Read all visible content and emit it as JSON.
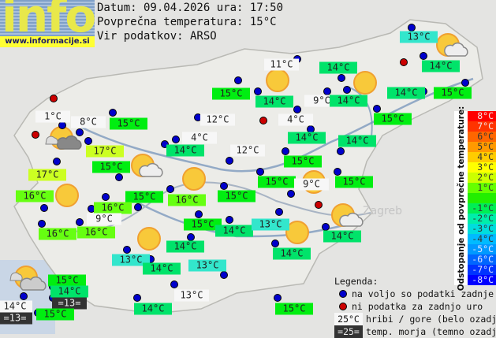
{
  "logo": {
    "text": "info",
    "url": "www.informacije.si"
  },
  "header": {
    "date_line": "Datum: 09.04.2026 ura: 17:50",
    "avg_line": "Povprečna temperatura: 15°C",
    "source_line": "Vir podatkov: ARSO"
  },
  "colors": {
    "available_dot": "#0000cc",
    "missing_dot": "#cc0000",
    "17": "#ccff22",
    "16": "#66ff11",
    "15": "#00ee11",
    "14": "#00e36a",
    "13": "#33e6cc"
  },
  "labels": [
    {
      "text": "13°C",
      "kind": "valley"
    },
    {
      "text": "11°C",
      "kind": "mountain"
    },
    {
      "text": "14°C",
      "kind": "valley"
    },
    {
      "text": "14°C",
      "kind": "valley"
    },
    {
      "text": "15°C",
      "kind": "valley"
    },
    {
      "text": "14°C",
      "kind": "valley"
    },
    {
      "text": "9°C",
      "kind": "mountain"
    },
    {
      "text": "14°C",
      "kind": "valley"
    },
    {
      "text": "14°C",
      "kind": "valley"
    },
    {
      "text": "15°C",
      "kind": "valley"
    },
    {
      "text": "15°C",
      "kind": "valley"
    },
    {
      "text": "1°C",
      "kind": "mountain"
    },
    {
      "text": "8°C",
      "kind": "mountain"
    },
    {
      "text": "15°C",
      "kind": "valley"
    },
    {
      "text": "12°C",
      "kind": "mountain"
    },
    {
      "text": "4°C",
      "kind": "mountain"
    },
    {
      "text": "4°C",
      "kind": "mountain"
    },
    {
      "text": "14°C",
      "kind": "valley"
    },
    {
      "text": "14°C",
      "kind": "valley"
    },
    {
      "text": "14°C",
      "kind": "valley"
    },
    {
      "text": "17°C",
      "kind": "valley"
    },
    {
      "text": "12°C",
      "kind": "mountain"
    },
    {
      "text": "15°C",
      "kind": "valley"
    },
    {
      "text": "15°C",
      "kind": "valley"
    },
    {
      "text": "15°C",
      "kind": "valley"
    },
    {
      "text": "9°C",
      "kind": "mountain"
    },
    {
      "text": "15°C",
      "kind": "valley"
    },
    {
      "text": "17°C",
      "kind": "valley"
    },
    {
      "text": "15°C",
      "kind": "valley"
    },
    {
      "text": "16°C",
      "kind": "valley"
    },
    {
      "text": "15°C",
      "kind": "valley"
    },
    {
      "text": "16°C",
      "kind": "valley"
    },
    {
      "text": "16°C",
      "kind": "valley"
    },
    {
      "text": "9°C",
      "kind": "mountain"
    },
    {
      "text": "16°C",
      "kind": "valley"
    },
    {
      "text": "16°C",
      "kind": "valley"
    },
    {
      "text": "15°C",
      "kind": "valley"
    },
    {
      "text": "14°C",
      "kind": "valley"
    },
    {
      "text": "13°C",
      "kind": "valley"
    },
    {
      "text": "14°C",
      "kind": "valley"
    },
    {
      "text": "14°C",
      "kind": "valley"
    },
    {
      "text": "13°C",
      "kind": "valley"
    },
    {
      "text": "14°C",
      "kind": "valley"
    },
    {
      "text": "13°C",
      "kind": "valley"
    },
    {
      "text": "14°C",
      "kind": "valley"
    },
    {
      "text": "15°C",
      "kind": "valley"
    },
    {
      "text": "14°C",
      "kind": "valley"
    },
    {
      "text": "=13=",
      "kind": "sea"
    },
    {
      "text": "14°C",
      "kind": "mountain"
    },
    {
      "text": "=13=",
      "kind": "sea"
    },
    {
      "text": "15°C",
      "kind": "valley"
    },
    {
      "text": "14°C",
      "kind": "valley"
    },
    {
      "text": "13°C",
      "kind": "mountain"
    },
    {
      "text": "15°C",
      "kind": "valley"
    }
  ],
  "dots": [
    "available",
    "available",
    "available",
    "available",
    "available",
    "available",
    "available",
    "available",
    "available",
    "available",
    "available",
    "available",
    "available",
    "available",
    "available",
    "available",
    "available",
    "available",
    "available",
    "available",
    "available",
    "available",
    "available",
    "available",
    "available",
    "available",
    "available",
    "available",
    "available",
    "available",
    "available",
    "available",
    "available",
    "available",
    "available",
    "available",
    "available",
    "available",
    "available",
    "available",
    "available",
    "available",
    "available",
    "available",
    "available",
    "available",
    "available",
    "missing",
    "missing",
    "missing",
    "missing",
    "missing"
  ],
  "weather_icons": [
    "sun",
    "sun",
    "sun-cloud",
    "sun-dark-cloud",
    "sun-cloud",
    "sun",
    "sun",
    "sun",
    "sun-cloud",
    "sun",
    "sun",
    "sun-clouds"
  ],
  "legend": {
    "title": "Legenda:",
    "available": "na voljo so podatki zadnje ure",
    "missing": "ni podatka za zadnjo uro",
    "mountain_sample": "25°C",
    "mountain_text": "hribi / gore (belo ozadje)",
    "sea_sample": "=25=",
    "sea_text": "temp. morja (temno ozadje)"
  },
  "scale": {
    "title": "Odstopanje od povprečne temperature:",
    "steps": [
      {
        "label": "8°C",
        "color": "#ff0000"
      },
      {
        "label": "7°C",
        "color": "#ff3300"
      },
      {
        "label": "6°C",
        "color": "#ff6600"
      },
      {
        "label": "5°C",
        "color": "#ff9900"
      },
      {
        "label": "4°C",
        "color": "#ffcc00"
      },
      {
        "label": "3°C",
        "color": "#ffff00"
      },
      {
        "label": "2°C",
        "color": "#ccff00"
      },
      {
        "label": "1°C",
        "color": "#66ff00"
      },
      {
        "label": "",
        "color": "#22ee00"
      },
      {
        "label": "-1°C",
        "color": "#00ee55"
      },
      {
        "label": "-2°C",
        "color": "#00eeaa"
      },
      {
        "label": "-3°C",
        "color": "#00dddd"
      },
      {
        "label": "-4°C",
        "color": "#00bbff"
      },
      {
        "label": "-5°C",
        "color": "#0099ff"
      },
      {
        "label": "-6°C",
        "color": "#0066ff"
      },
      {
        "label": "-7°C",
        "color": "#0033ff"
      },
      {
        "label": "-8°C",
        "color": "#0000ff"
      }
    ]
  }
}
